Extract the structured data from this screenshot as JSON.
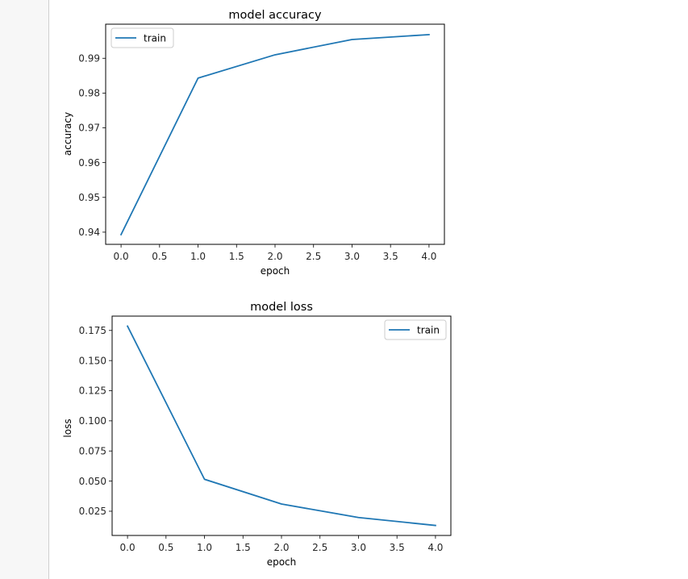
{
  "chart_data": [
    {
      "type": "line",
      "title": "model accuracy",
      "xlabel": "epoch",
      "ylabel": "accuracy",
      "x": [
        0,
        1,
        2,
        3,
        4
      ],
      "series": [
        {
          "name": "train",
          "values": [
            0.9393,
            0.9843,
            0.991,
            0.9954,
            0.9968
          ],
          "color": "#1f77b4"
        }
      ],
      "xlim": [
        -0.2,
        4.2
      ],
      "ylim": [
        0.9365,
        0.9998
      ],
      "xticks": [
        "0.0",
        "0.5",
        "1.0",
        "1.5",
        "2.0",
        "2.5",
        "3.0",
        "3.5",
        "4.0"
      ],
      "yticks": [
        "0.94",
        "0.95",
        "0.96",
        "0.97",
        "0.98",
        "0.99"
      ],
      "legend": "upper left",
      "grid": false
    },
    {
      "type": "line",
      "title": "model loss",
      "xlabel": "epoch",
      "ylabel": "loss",
      "x": [
        0,
        1,
        2,
        3,
        4
      ],
      "series": [
        {
          "name": "train",
          "values": [
            0.1786,
            0.0515,
            0.031,
            0.0198,
            0.0132
          ],
          "color": "#1f77b4"
        }
      ],
      "xlim": [
        -0.2,
        4.2
      ],
      "ylim": [
        0.0049,
        0.1869
      ],
      "xticks": [
        "0.0",
        "0.5",
        "1.0",
        "1.5",
        "2.0",
        "2.5",
        "3.0",
        "3.5",
        "4.0"
      ],
      "yticks": [
        "0.025",
        "0.050",
        "0.075",
        "0.100",
        "0.125",
        "0.150",
        "0.175"
      ],
      "legend": "upper right",
      "grid": false
    }
  ]
}
